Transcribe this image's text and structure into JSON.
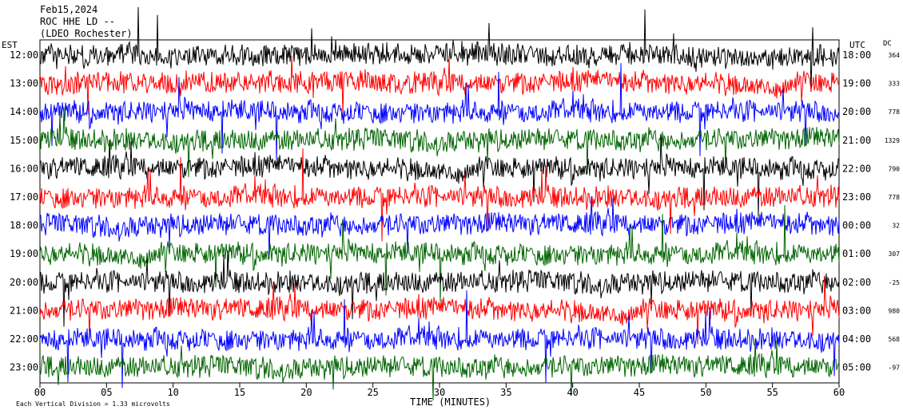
{
  "header": {
    "line1": "Feb15,2024",
    "line2": "ROC HHE LD --",
    "line3": "(LDEO Rochester)"
  },
  "chart_data": {
    "type": "line",
    "title": "",
    "left_axis_label": "EST",
    "right_axis_label": "UTC",
    "dc_label": "DC",
    "xlabel": "TIME (MINUTES)",
    "xticks": [
      "00",
      "05",
      "10",
      "15",
      "20",
      "25",
      "30",
      "35",
      "40",
      "45",
      "50",
      "55",
      "60"
    ],
    "xlim": [
      0,
      60
    ],
    "rows": [
      {
        "est": "12:00",
        "utc": "18:00",
        "dc": "364",
        "color": "#000000"
      },
      {
        "est": "13:00",
        "utc": "19:00",
        "dc": "333",
        "color": "#ff0000"
      },
      {
        "est": "14:00",
        "utc": "20:00",
        "dc": "778",
        "color": "#0000ff"
      },
      {
        "est": "15:00",
        "utc": "21:00",
        "dc": "1329",
        "color": "#006400"
      },
      {
        "est": "16:00",
        "utc": "22:00",
        "dc": "790",
        "color": "#000000"
      },
      {
        "est": "17:00",
        "utc": "23:00",
        "dc": "778",
        "color": "#ff0000"
      },
      {
        "est": "18:00",
        "utc": "00:00",
        "dc": "32",
        "color": "#0000ff"
      },
      {
        "est": "19:00",
        "utc": "01:00",
        "dc": "307",
        "color": "#006400"
      },
      {
        "est": "20:00",
        "utc": "02:00",
        "dc": "-25",
        "color": "#000000"
      },
      {
        "est": "21:00",
        "utc": "03:00",
        "dc": "980",
        "color": "#ff0000"
      },
      {
        "est": "22:00",
        "utc": "04:00",
        "dc": "568",
        "color": "#0000ff"
      },
      {
        "est": "23:00",
        "utc": "05:00",
        "dc": "-97",
        "color": "#006400"
      }
    ],
    "footer_note": "Each Vertical Division = 1.33 microvolts",
    "grid": false
  }
}
